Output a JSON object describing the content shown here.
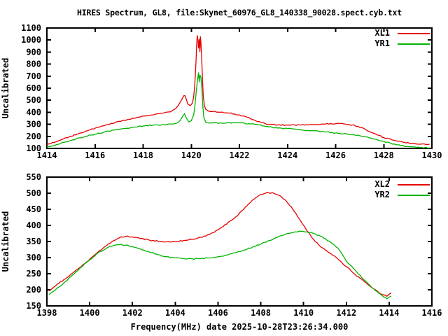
{
  "title": "HIRES Spectrum, GL8, file:Skynet_60976_GL8_140338_90028.spect.cyb.txt",
  "colors": {
    "background": "#ffffff",
    "axis": "#000000",
    "text": "#000000",
    "xl_red": "#e60000",
    "yr_green": "#00b400"
  },
  "chart_data": [
    {
      "type": "line",
      "title": "",
      "xlabel": "",
      "ylabel": "Uncalibrated",
      "xlim": [
        1414,
        1430
      ],
      "ylim": [
        100,
        1100
      ],
      "xticks": [
        1414,
        1416,
        1418,
        1420,
        1422,
        1424,
        1426,
        1428,
        1430
      ],
      "yticks": [
        100,
        200,
        300,
        400,
        500,
        600,
        700,
        800,
        900,
        1000,
        1100
      ],
      "grid": false,
      "legend_position": "top-right-inside",
      "series": [
        {
          "name": "XL1",
          "color": "#e60000",
          "points": [
            [
              1414.0,
              130
            ],
            [
              1414.3,
              150
            ],
            [
              1414.6,
              172
            ],
            [
              1415.0,
              200
            ],
            [
              1415.4,
              228
            ],
            [
              1415.8,
              255
            ],
            [
              1416.2,
              278
            ],
            [
              1416.6,
              300
            ],
            [
              1417.0,
              325
            ],
            [
              1417.4,
              342
            ],
            [
              1417.8,
              360
            ],
            [
              1418.2,
              372
            ],
            [
              1418.6,
              388
            ],
            [
              1419.0,
              402
            ],
            [
              1419.2,
              412
            ],
            [
              1419.35,
              430
            ],
            [
              1419.5,
              470
            ],
            [
              1419.6,
              505
            ],
            [
              1419.7,
              540
            ],
            [
              1419.75,
              535
            ],
            [
              1419.85,
              470
            ],
            [
              1419.95,
              455
            ],
            [
              1420.0,
              465
            ],
            [
              1420.05,
              478
            ],
            [
              1420.1,
              530
            ],
            [
              1420.15,
              640
            ],
            [
              1420.2,
              830
            ],
            [
              1420.22,
              950
            ],
            [
              1420.25,
              1040
            ],
            [
              1420.28,
              990
            ],
            [
              1420.3,
              930
            ],
            [
              1420.33,
              1010
            ],
            [
              1420.36,
              900
            ],
            [
              1420.38,
              1030
            ],
            [
              1420.4,
              980
            ],
            [
              1420.43,
              870
            ],
            [
              1420.46,
              700
            ],
            [
              1420.5,
              530
            ],
            [
              1420.55,
              450
            ],
            [
              1420.6,
              425
            ],
            [
              1420.7,
              412
            ],
            [
              1420.9,
              406
            ],
            [
              1421.2,
              400
            ],
            [
              1421.5,
              395
            ],
            [
              1421.8,
              386
            ],
            [
              1422.0,
              378
            ],
            [
              1422.3,
              360
            ],
            [
              1422.6,
              338
            ],
            [
              1422.9,
              315
            ],
            [
              1423.2,
              300
            ],
            [
              1423.6,
              295
            ],
            [
              1424.0,
              293
            ],
            [
              1424.5,
              295
            ],
            [
              1425.0,
              298
            ],
            [
              1425.5,
              302
            ],
            [
              1426.0,
              306
            ],
            [
              1426.4,
              303
            ],
            [
              1426.8,
              290
            ],
            [
              1427.2,
              262
            ],
            [
              1427.6,
              225
            ],
            [
              1428.0,
              190
            ],
            [
              1428.4,
              168
            ],
            [
              1428.8,
              152
            ],
            [
              1429.2,
              142
            ],
            [
              1429.6,
              137
            ],
            [
              1429.9,
              135
            ]
          ]
        },
        {
          "name": "YR1",
          "color": "#00b400",
          "points": [
            [
              1414.0,
              112
            ],
            [
              1414.4,
              132
            ],
            [
              1414.8,
              155
            ],
            [
              1415.2,
              178
            ],
            [
              1415.6,
              200
            ],
            [
              1416.0,
              218
            ],
            [
              1416.4,
              238
            ],
            [
              1416.8,
              252
            ],
            [
              1417.2,
              265
            ],
            [
              1417.6,
              276
            ],
            [
              1418.0,
              286
            ],
            [
              1418.4,
              293
            ],
            [
              1418.8,
              298
            ],
            [
              1419.2,
              303
            ],
            [
              1419.4,
              310
            ],
            [
              1419.55,
              335
            ],
            [
              1419.65,
              370
            ],
            [
              1419.72,
              388
            ],
            [
              1419.8,
              350
            ],
            [
              1419.9,
              320
            ],
            [
              1420.0,
              330
            ],
            [
              1420.1,
              380
            ],
            [
              1420.15,
              450
            ],
            [
              1420.2,
              560
            ],
            [
              1420.25,
              650
            ],
            [
              1420.28,
              700
            ],
            [
              1420.3,
              730
            ],
            [
              1420.33,
              650
            ],
            [
              1420.36,
              710
            ],
            [
              1420.4,
              690
            ],
            [
              1420.44,
              600
            ],
            [
              1420.48,
              450
            ],
            [
              1420.52,
              360
            ],
            [
              1420.6,
              318
            ],
            [
              1420.8,
              312
            ],
            [
              1421.2,
              312
            ],
            [
              1421.6,
              314
            ],
            [
              1422.0,
              312
            ],
            [
              1422.4,
              305
            ],
            [
              1422.8,
              295
            ],
            [
              1423.1,
              282
            ],
            [
              1423.5,
              272
            ],
            [
              1424.0,
              265
            ],
            [
              1424.5,
              256
            ],
            [
              1425.0,
              247
            ],
            [
              1425.5,
              238
            ],
            [
              1426.0,
              228
            ],
            [
              1426.5,
              218
            ],
            [
              1427.0,
              205
            ],
            [
              1427.5,
              185
            ],
            [
              1428.0,
              158
            ],
            [
              1428.5,
              132
            ],
            [
              1429.0,
              115
            ],
            [
              1429.5,
              107
            ],
            [
              1429.9,
              105
            ]
          ]
        }
      ]
    },
    {
      "type": "line",
      "title": "",
      "xlabel": "Frequency(MHz) date 2025-10-28T23:26:34.000",
      "ylabel": "Uncalibrated",
      "xlim": [
        1398,
        1416
      ],
      "ylim": [
        150,
        550
      ],
      "xticks": [
        1398,
        1400,
        1402,
        1404,
        1406,
        1408,
        1410,
        1412,
        1414,
        1416
      ],
      "yticks": [
        150,
        200,
        250,
        300,
        350,
        400,
        450,
        500,
        550
      ],
      "grid": false,
      "legend_position": "top-right-inside",
      "series": [
        {
          "name": "XL2",
          "color": "#e60000",
          "points": [
            [
              1398.1,
              197
            ],
            [
              1398.4,
              212
            ],
            [
              1398.8,
              232
            ],
            [
              1399.2,
              252
            ],
            [
              1399.6,
              272
            ],
            [
              1400.0,
              295
            ],
            [
              1400.4,
              318
            ],
            [
              1400.8,
              338
            ],
            [
              1401.1,
              352
            ],
            [
              1401.4,
              362
            ],
            [
              1401.7,
              366
            ],
            [
              1402.0,
              364
            ],
            [
              1402.4,
              359
            ],
            [
              1402.8,
              354
            ],
            [
              1403.2,
              351
            ],
            [
              1403.6,
              349
            ],
            [
              1404.0,
              350
            ],
            [
              1404.4,
              353
            ],
            [
              1404.8,
              357
            ],
            [
              1405.2,
              363
            ],
            [
              1405.6,
              372
            ],
            [
              1406.0,
              386
            ],
            [
              1406.4,
              404
            ],
            [
              1406.8,
              425
            ],
            [
              1407.2,
              450
            ],
            [
              1407.6,
              478
            ],
            [
              1408.0,
              496
            ],
            [
              1408.3,
              502
            ],
            [
              1408.6,
              500
            ],
            [
              1408.9,
              492
            ],
            [
              1409.2,
              475
            ],
            [
              1409.5,
              450
            ],
            [
              1409.8,
              420
            ],
            [
              1410.1,
              390
            ],
            [
              1410.4,
              361
            ],
            [
              1410.7,
              340
            ],
            [
              1411.0,
              325
            ],
            [
              1411.3,
              311
            ],
            [
              1411.6,
              296
            ],
            [
              1412.0,
              272
            ],
            [
              1412.4,
              248
            ],
            [
              1412.8,
              228
            ],
            [
              1413.2,
              206
            ],
            [
              1413.6,
              188
            ],
            [
              1413.9,
              180
            ],
            [
              1414.1,
              190
            ]
          ]
        },
        {
          "name": "YR2",
          "color": "#00b400",
          "points": [
            [
              1398.1,
              185
            ],
            [
              1398.4,
              200
            ],
            [
              1398.8,
              222
            ],
            [
              1399.2,
              246
            ],
            [
              1399.6,
              270
            ],
            [
              1400.0,
              293
            ],
            [
              1400.4,
              315
            ],
            [
              1400.8,
              330
            ],
            [
              1401.1,
              337
            ],
            [
              1401.4,
              340
            ],
            [
              1401.7,
              339
            ],
            [
              1402.0,
              334
            ],
            [
              1402.4,
              326
            ],
            [
              1402.8,
              317
            ],
            [
              1403.2,
              309
            ],
            [
              1403.6,
              303
            ],
            [
              1404.0,
              299
            ],
            [
              1404.4,
              297
            ],
            [
              1404.8,
              296
            ],
            [
              1405.2,
              297
            ],
            [
              1405.6,
              299
            ],
            [
              1406.0,
              303
            ],
            [
              1406.4,
              308
            ],
            [
              1406.8,
              315
            ],
            [
              1407.2,
              323
            ],
            [
              1407.6,
              332
            ],
            [
              1408.0,
              342
            ],
            [
              1408.4,
              353
            ],
            [
              1408.8,
              364
            ],
            [
              1409.2,
              374
            ],
            [
              1409.6,
              380
            ],
            [
              1410.0,
              381
            ],
            [
              1410.4,
              377
            ],
            [
              1410.8,
              366
            ],
            [
              1411.2,
              351
            ],
            [
              1411.6,
              330
            ],
            [
              1412.0,
              289
            ],
            [
              1412.4,
              262
            ],
            [
              1412.8,
              232
            ],
            [
              1413.2,
              207
            ],
            [
              1413.6,
              186
            ],
            [
              1413.9,
              172
            ],
            [
              1414.1,
              180
            ]
          ]
        }
      ]
    }
  ]
}
